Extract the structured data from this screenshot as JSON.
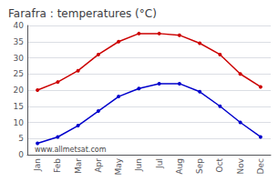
{
  "chart_data": {
    "type": "line",
    "title": "Farafra : temperatures (°C)",
    "categories": [
      "Jan",
      "Feb",
      "Mar",
      "Apr",
      "May",
      "Jun",
      "Jul",
      "Aug",
      "Sep",
      "Oct",
      "Nov",
      "Dec"
    ],
    "series": [
      {
        "color": "#cc0000",
        "values": [
          20,
          22.5,
          26,
          31,
          35,
          37.5,
          37.5,
          37,
          34.5,
          31,
          25,
          21
        ]
      },
      {
        "color": "#0000cc",
        "values": [
          3.5,
          5.5,
          9,
          13.5,
          18,
          20.5,
          22,
          22,
          19.5,
          15,
          10,
          5.5
        ]
      }
    ],
    "ylim": [
      0,
      40
    ],
    "yticks": [
      0,
      5,
      10,
      15,
      20,
      25,
      30,
      35,
      40
    ],
    "grid": true,
    "marker": "circle",
    "annotations": [
      "www.allmetsat.com"
    ]
  }
}
